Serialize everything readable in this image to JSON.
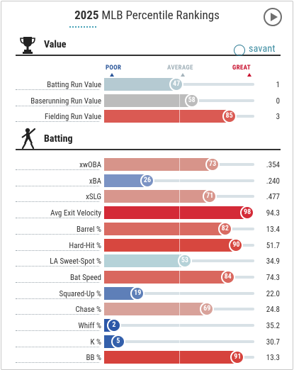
{
  "header": {
    "year": "2025",
    "title_rest": " MLB Percentile Rankings"
  },
  "branding": {
    "savant_text": "savant"
  },
  "legend": {
    "poor": "POOR",
    "average": "AVERAGE",
    "great": "GREAT",
    "poor_color": "#2a5599",
    "average_color": "#a4b3bb",
    "great_color": "#c8102e"
  },
  "sections": {
    "value": {
      "label": "Value",
      "icon": "trophy-icon",
      "rows": [
        {
          "name": "Batting Run Value",
          "percentile": 47,
          "value": "1",
          "color": "#b5cad2"
        },
        {
          "name": "Baserunning Run Value",
          "percentile": 58,
          "value": "0",
          "color": "#bcbcbc"
        },
        {
          "name": "Fielding Run Value",
          "percentile": 85,
          "value": "3",
          "color": "#da5a53"
        }
      ]
    },
    "batting": {
      "label": "Batting",
      "icon": "batter-icon",
      "rows": [
        {
          "name": "xwOBA",
          "percentile": 73,
          "value": ".354",
          "color": "#d7948a"
        },
        {
          "name": "xBA",
          "percentile": 26,
          "value": ".240",
          "color": "#7b93c4"
        },
        {
          "name": "xSLG",
          "percentile": 71,
          "value": ".477",
          "color": "#d8968d"
        },
        {
          "name": "Avg Exit Velocity",
          "percentile": 98,
          "value": "94.3",
          "color": "#d42a37"
        },
        {
          "name": "Barrel %",
          "percentile": 82,
          "value": "13.4",
          "color": "#d96b62"
        },
        {
          "name": "Hard-Hit %",
          "percentile": 90,
          "value": "51.7",
          "color": "#d7473f"
        },
        {
          "name": "LA Sweet-Spot %",
          "percentile": 53,
          "value": "34.9",
          "color": "#b5d2d8"
        },
        {
          "name": "Bat Speed",
          "percentile": 84,
          "value": "74.3",
          "color": "#d9675e"
        },
        {
          "name": "Squared-Up %",
          "percentile": 19,
          "value": "22.0",
          "color": "#5e7fb8"
        },
        {
          "name": "Chase %",
          "percentile": 69,
          "value": "24.8",
          "color": "#d8a29a"
        },
        {
          "name": "Whiff %",
          "percentile": 2,
          "value": "35.2",
          "color": "#2c57a8"
        },
        {
          "name": "K %",
          "percentile": 5,
          "value": "30.7",
          "color": "#3460ab"
        },
        {
          "name": "BB %",
          "percentile": 91,
          "value": "13.3",
          "color": "#d6423c"
        }
      ]
    }
  }
}
